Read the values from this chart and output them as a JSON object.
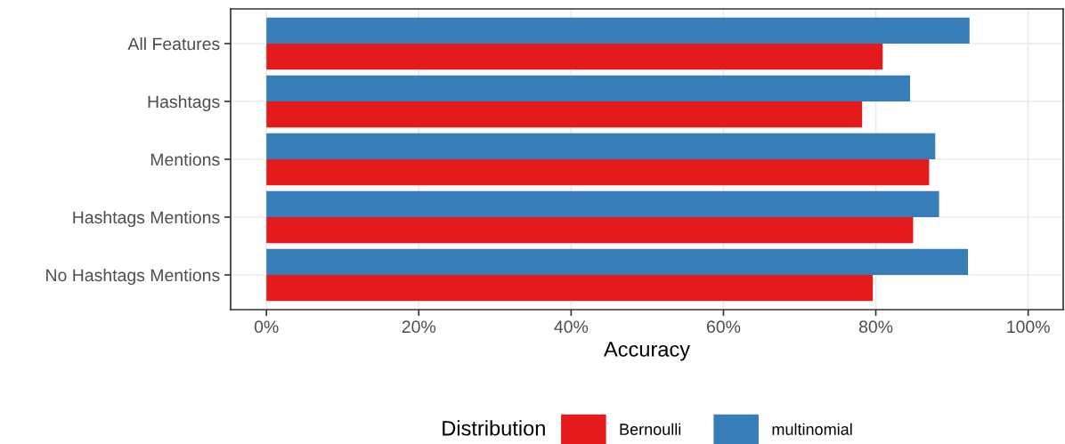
{
  "chart_data": {
    "type": "bar",
    "orientation": "horizontal",
    "xlabel": "Accuracy",
    "legend_title": "Distribution",
    "legend": "bottom",
    "grid": true,
    "categories": [
      "All Features",
      "Hashtags",
      "Mentions",
      "Hashtags Mentions",
      "No Hashtags Mentions"
    ],
    "series": [
      {
        "name": "Bernoulli",
        "color": "#e41a1c",
        "values": [
          80.9,
          78.2,
          87.0,
          84.9,
          79.6
        ]
      },
      {
        "name": "multinomial",
        "color": "#377eb8",
        "values": [
          92.3,
          84.5,
          87.8,
          88.3,
          92.1
        ]
      }
    ],
    "xlim": [
      -4.7,
      104.6
    ],
    "xticks": [
      {
        "value": 0,
        "label": "0%"
      },
      {
        "value": 20,
        "label": "20%"
      },
      {
        "value": 40,
        "label": "40%"
      },
      {
        "value": 60,
        "label": "60%"
      },
      {
        "value": 80,
        "label": "80%"
      },
      {
        "value": 100,
        "label": "100%"
      }
    ]
  }
}
